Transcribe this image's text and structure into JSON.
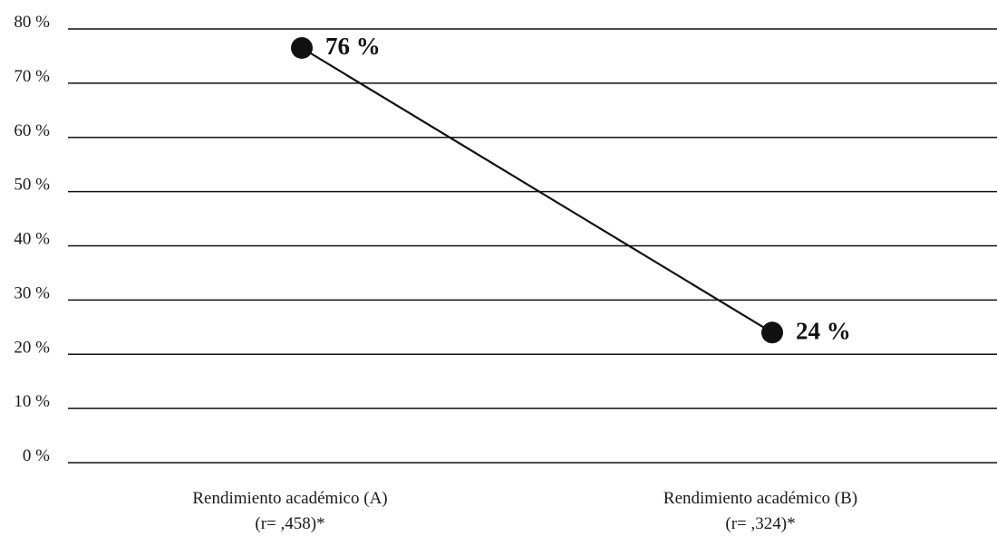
{
  "chart_data": {
    "type": "line",
    "title": "",
    "xlabel": "",
    "ylabel": "",
    "ylim": [
      0,
      80
    ],
    "yticks": [
      0,
      10,
      20,
      30,
      40,
      50,
      60,
      70,
      80
    ],
    "ytick_labels": [
      "0 %",
      "10 %",
      "20 %",
      "30 %",
      "40 %",
      "50 %",
      "60 %",
      "70 %",
      "80 %"
    ],
    "grid": true,
    "legend": "none",
    "categories": [
      {
        "line1": "Rendimiento académico (A)",
        "line2": "(r= ,458)*"
      },
      {
        "line1": "Rendimiento académico (B)",
        "line2": "(r= ,324)*"
      }
    ],
    "series": [
      {
        "values": [
          76.5,
          24
        ],
        "data_labels": [
          "76 %",
          "24 %"
        ],
        "color": "#111111"
      }
    ]
  }
}
